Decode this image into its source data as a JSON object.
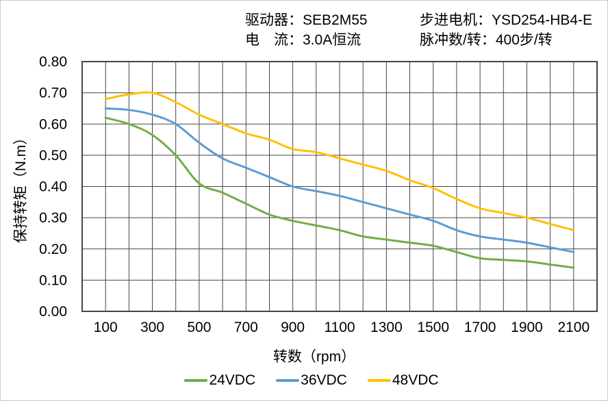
{
  "header": {
    "col1": {
      "line1": "驱动器：SEB2M55",
      "line2": "电　流：3.0A恒流"
    },
    "col2": {
      "line1": "步进电机：YSD254-HB4-E",
      "line2": "脉冲数/转：400步/转"
    }
  },
  "chart_data": {
    "type": "line",
    "title": "",
    "xlabel": "转数（rpm）",
    "ylabel": "保持转矩（N.m）",
    "xlim": [
      0,
      2200
    ],
    "ylim": [
      0,
      0.8
    ],
    "grid": true,
    "grid_step_x": 100,
    "grid_step_y": 0.1,
    "legend_position": "bottom",
    "x_ticks": [
      100,
      300,
      500,
      700,
      900,
      1100,
      1300,
      1500,
      1700,
      1900,
      2100
    ],
    "y_ticks": [
      0,
      0.1,
      0.2,
      0.3,
      0.4,
      0.5,
      0.6,
      0.7,
      0.8
    ],
    "y_tick_labels": [
      "0.00",
      "0.10",
      "0.20",
      "0.30",
      "0.40",
      "0.50",
      "0.60",
      "0.70",
      "0.80"
    ],
    "x": [
      100,
      200,
      300,
      400,
      500,
      600,
      700,
      800,
      900,
      1000,
      1100,
      1200,
      1300,
      1400,
      1500,
      1600,
      1700,
      1800,
      1900,
      2000,
      2100
    ],
    "series": [
      {
        "name": "24VDC",
        "color": "#70AD47",
        "values": [
          0.62,
          0.6,
          0.565,
          0.5,
          0.41,
          0.38,
          0.345,
          0.31,
          0.29,
          0.275,
          0.26,
          0.24,
          0.23,
          0.22,
          0.21,
          0.19,
          0.17,
          0.165,
          0.16,
          0.15,
          0.14
        ]
      },
      {
        "name": "36VDC",
        "color": "#5B9BD5",
        "values": [
          0.65,
          0.645,
          0.63,
          0.6,
          0.54,
          0.49,
          0.46,
          0.43,
          0.4,
          0.385,
          0.37,
          0.35,
          0.33,
          0.31,
          0.29,
          0.26,
          0.24,
          0.23,
          0.22,
          0.205,
          0.19
        ]
      },
      {
        "name": "48VDC",
        "color": "#FFC000",
        "values": [
          0.68,
          0.695,
          0.7,
          0.67,
          0.63,
          0.6,
          0.57,
          0.55,
          0.52,
          0.51,
          0.49,
          0.47,
          0.45,
          0.42,
          0.395,
          0.36,
          0.33,
          0.315,
          0.3,
          0.28,
          0.26
        ]
      }
    ]
  }
}
